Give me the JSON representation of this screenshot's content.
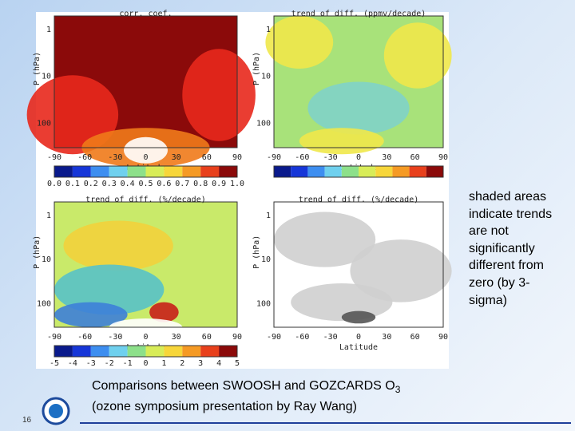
{
  "slide": {
    "number": "16",
    "caption_line1": "Comparisons between SWOOSH and GOZCARDS O",
    "caption_sub": "3",
    "caption_line2": "(ozone symposium presentation by Ray Wang)",
    "side_note": "shaded areas indicate trends are not significantly different from zero (by 3-sigma)"
  },
  "figure": {
    "panels": [
      {
        "title": "corr. coef.",
        "ylabel": "P (hPa)",
        "xlabel": "Latitude",
        "xticks": [
          "-90",
          "-60",
          "-30",
          "0",
          "30",
          "60",
          "90"
        ],
        "yticks": [
          "1",
          "10",
          "100"
        ],
        "colorbar": [
          "0.0",
          "0.1",
          "0.2",
          "0.3",
          "0.4",
          "0.5",
          "0.6",
          "0.7",
          "0.8",
          "0.9",
          "1.0"
        ]
      },
      {
        "title": "trend of diff. (ppmv/decade)",
        "ylabel": "P (hPa)",
        "xlabel": "Latitude",
        "xticks": [
          "-90",
          "-60",
          "-30",
          "0",
          "30",
          "60",
          "90"
        ],
        "yticks": [
          "1",
          "10",
          "100"
        ]
      },
      {
        "title": "trend of diff. (%/decade)",
        "ylabel": "P (hPa)",
        "xlabel": "Latitude",
        "xticks": [
          "-90",
          "-60",
          "-30",
          "0",
          "30",
          "60",
          "90"
        ],
        "yticks": [
          "1",
          "10",
          "100"
        ],
        "colorbar": [
          "-5",
          "-4",
          "-3",
          "-2",
          "-1",
          "0",
          "1",
          "2",
          "3",
          "4",
          "5"
        ]
      },
      {
        "title": "trend of diff. (%/decade)",
        "ylabel": "P (hPa)",
        "xlabel": "Latitude",
        "xticks": [
          "-90",
          "-60",
          "-30",
          "0",
          "30",
          "60",
          "90"
        ],
        "yticks": [
          "1",
          "10",
          "100"
        ]
      }
    ]
  }
}
